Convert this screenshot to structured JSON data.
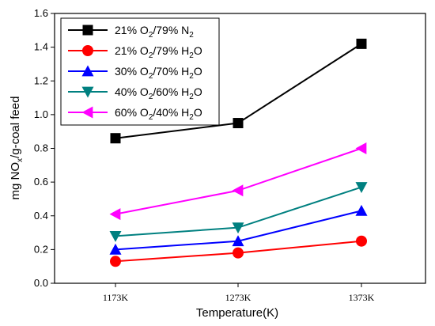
{
  "chart_data": {
    "type": "line",
    "categories": [
      "1173K",
      "1273K",
      "1373K"
    ],
    "xlabel": "Temperature(K)",
    "ylabel": "mg NOx/g-coal feed",
    "ylim": [
      0,
      1.6
    ],
    "yticks": [
      0.0,
      0.2,
      0.4,
      0.6,
      0.8,
      1.0,
      1.2,
      1.4,
      1.6
    ],
    "ytick_labels": [
      "0.0",
      "0.2",
      "0.4",
      "0.6",
      "0.8",
      "1.0",
      "1.2",
      "1.4",
      "1.6"
    ],
    "grid": false,
    "legend_position": "top-left",
    "series": [
      {
        "name": "21% O2/79% N2",
        "legend": [
          "21% O",
          "2",
          "/79% N",
          "2"
        ],
        "color": "#000000",
        "marker": "square",
        "values": [
          0.86,
          0.95,
          1.42
        ]
      },
      {
        "name": "21% O2/79% H2O",
        "legend": [
          "21% O",
          "2",
          "/79% H",
          "2",
          "O"
        ],
        "color": "#ff0000",
        "marker": "circle",
        "values": [
          0.13,
          0.18,
          0.25
        ]
      },
      {
        "name": "30% O2/70% H2O",
        "legend": [
          "30% O",
          "2",
          "/70% H",
          "2",
          "O"
        ],
        "color": "#0000ff",
        "marker": "triangle-up",
        "values": [
          0.2,
          0.25,
          0.43
        ]
      },
      {
        "name": "40% O2/60% H2O",
        "legend": [
          "40% O",
          "2",
          "/60% H",
          "2",
          "O"
        ],
        "color": "#008080",
        "marker": "triangle-down",
        "values": [
          0.28,
          0.33,
          0.57
        ]
      },
      {
        "name": "60% O2/40% H2O",
        "legend": [
          "60% O",
          "2",
          "/40% H",
          "2",
          "O"
        ],
        "color": "#ff00ff",
        "marker": "triangle-left",
        "values": [
          0.41,
          0.55,
          0.8
        ]
      }
    ]
  }
}
